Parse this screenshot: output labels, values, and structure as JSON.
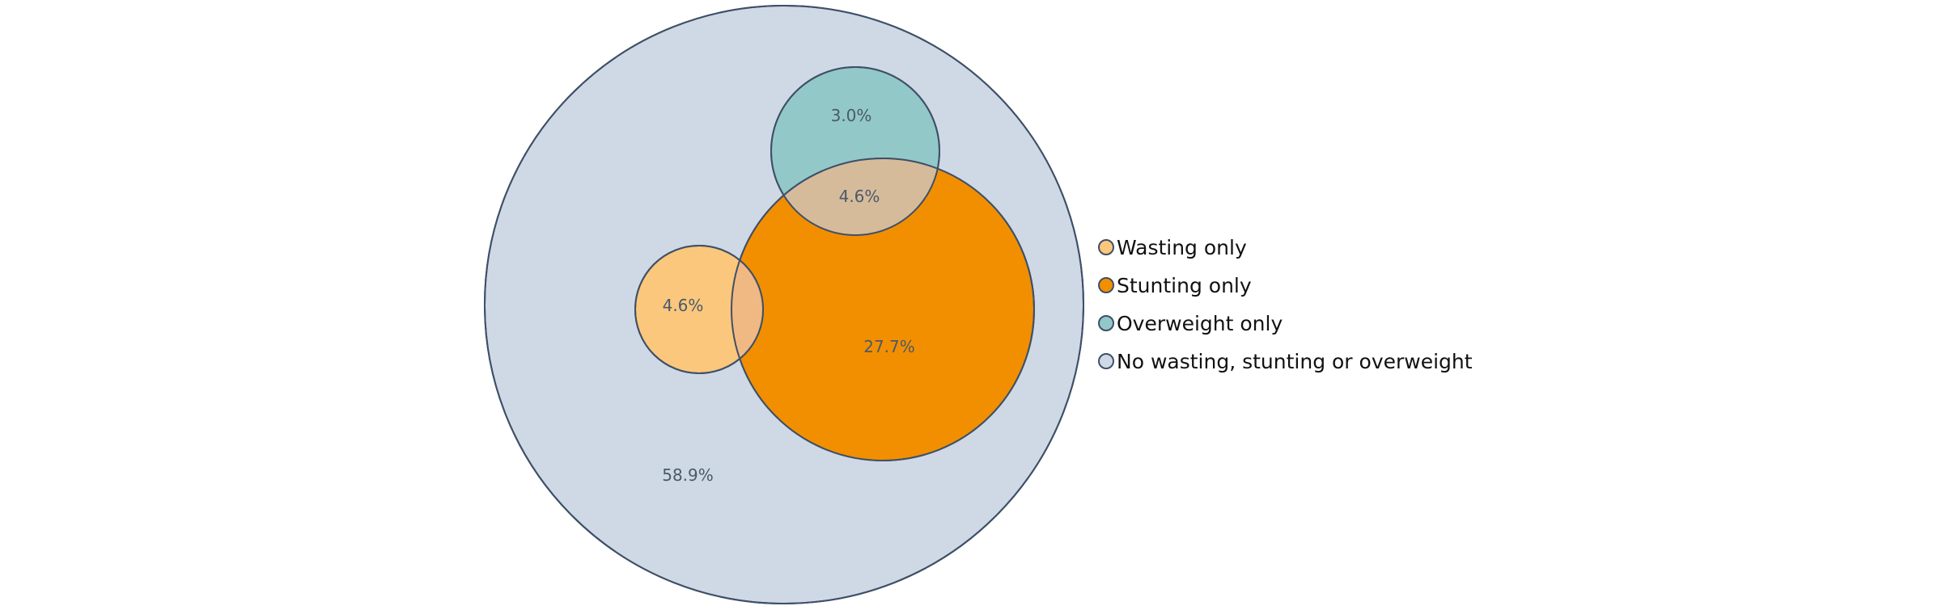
{
  "chart_data": {
    "type": "venn",
    "title": "",
    "sets": [
      {
        "name": "No wasting, stunting or overweight",
        "label": "58.9%",
        "value": 58.9,
        "color": "#cfd9e5"
      },
      {
        "name": "Stunting only",
        "label": "27.7%",
        "value": 27.7,
        "color": "#f28f00"
      },
      {
        "name": "Wasting only",
        "label": "4.6%",
        "value": 4.6,
        "color": "#fbc77c"
      },
      {
        "name": "Overweight only",
        "label": "3.0%",
        "value": 3.0,
        "color": "#93c8c8"
      }
    ],
    "overlaps": [
      {
        "sets": [
          "Stunting only",
          "Overweight only"
        ],
        "label": "4.6%",
        "value": 4.6,
        "color": "#d6bb9b"
      },
      {
        "sets": [
          "Stunting only",
          "Wasting only"
        ],
        "label": "",
        "color": "#f0b983"
      }
    ],
    "legend": {
      "placement": "right",
      "items": [
        {
          "label": "Wasting only",
          "color": "#fbc77c"
        },
        {
          "label": "Stunting only",
          "color": "#f28f00"
        },
        {
          "label": "Overweight only",
          "color": "#93c8c8"
        },
        {
          "label": "No wasting, stunting or overweight",
          "color": "#cfd9e5"
        }
      ]
    },
    "outline_color": "#3e5068"
  }
}
